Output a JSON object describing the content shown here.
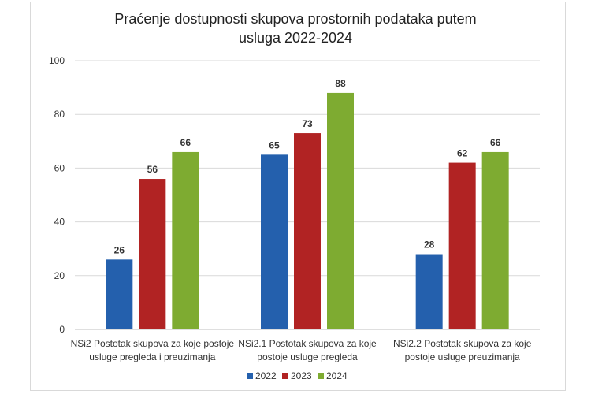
{
  "chart_data": {
    "type": "bar",
    "title_lines": [
      "Praćenje dostupnosti skupova prostornih podataka putem",
      "usluga 2022-2024"
    ],
    "categories": [
      [
        "NSi2 Postotak skupova za koje postoje",
        "usluge pregleda i preuzimanja"
      ],
      [
        "NSi2.1 Postotak skupova za koje",
        "postoje usluge pregleda"
      ],
      [
        "NSi2.2 Postotak skupova za koje",
        "postoje usluge preuzimanja"
      ]
    ],
    "series": [
      {
        "name": "2022",
        "values": [
          26,
          65,
          28
        ],
        "color": "#2460ad"
      },
      {
        "name": "2023",
        "values": [
          56,
          73,
          62
        ],
        "color": "#b12323"
      },
      {
        "name": "2024",
        "values": [
          66,
          88,
          66
        ],
        "color": "#7eab31"
      }
    ],
    "ylim": [
      0,
      100
    ],
    "yticks": [
      0,
      20,
      40,
      60,
      80,
      100
    ],
    "grid": true,
    "data_labels": true,
    "legend": "bottom"
  }
}
